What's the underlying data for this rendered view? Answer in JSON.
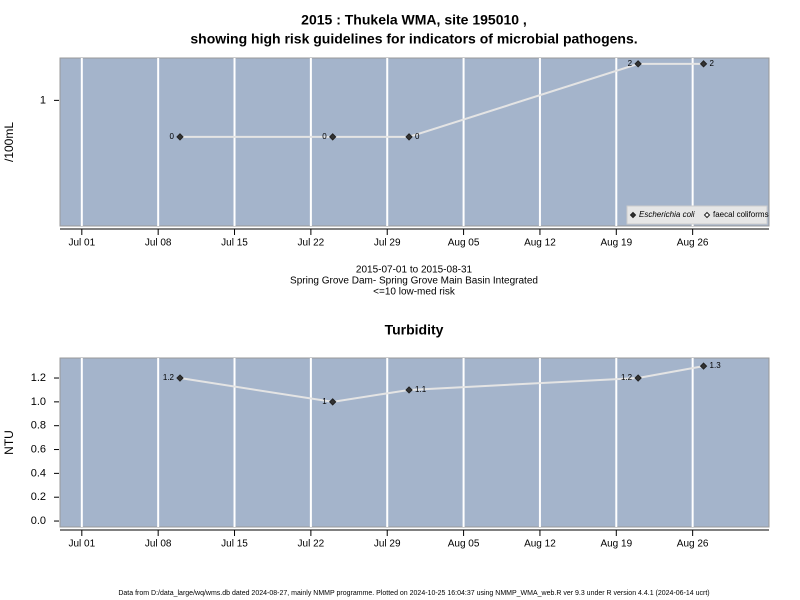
{
  "footer": "Data from D:/data_large/wq/wms.db dated 2024-08-27, mainly NMMP programme. Plotted on 2024-10-25 16:04:37 using NMMP_WMA_web.R ver 9.3 under R version 4.4.1 (2024-06-14 ucrt)",
  "chart_data": [
    {
      "type": "line",
      "title": [
        "2015 : Thukela WMA, site 195010 ,",
        "showing high risk guidelines for indicators of microbial pathogens."
      ],
      "caption": [
        "2015-07-01 to 2015-08-31",
        "Spring Grove Dam- Spring Grove Main Basin Integrated",
        "<=10 low-med risk"
      ],
      "ylabel": "/100mL",
      "x": [
        "2015-07-10",
        "2015-07-24",
        "2015-07-31",
        "2015-08-21",
        "2015-08-27"
      ],
      "series": [
        {
          "name": "Escherichia coli",
          "color": "#333333",
          "values": [
            0,
            0,
            0,
            2,
            2
          ]
        },
        {
          "name": "faecal coliforms",
          "color": "#ffffff",
          "values": [
            null,
            null,
            null,
            null,
            null
          ]
        }
      ],
      "xlim": [
        "2015-06-29",
        "2015-09-02"
      ],
      "xticks": [
        {
          "value": "2015-07-01",
          "label": "Jul 01"
        },
        {
          "value": "2015-07-08",
          "label": "Jul 08"
        },
        {
          "value": "2015-07-15",
          "label": "Jul 15"
        },
        {
          "value": "2015-07-22",
          "label": "Jul 22"
        },
        {
          "value": "2015-07-29",
          "label": "Jul 29"
        },
        {
          "value": "2015-08-05",
          "label": "Aug 05"
        },
        {
          "value": "2015-08-12",
          "label": "Aug 12"
        },
        {
          "value": "2015-08-19",
          "label": "Aug 19"
        },
        {
          "value": "2015-08-26",
          "label": "Aug 26"
        }
      ],
      "ylim": [
        -2.44,
        2.16
      ],
      "yticks": [
        1
      ],
      "grid": "x",
      "background": "#a4b4cb",
      "line_color": "#e4e4e4",
      "legend": "bottom-right"
    },
    {
      "type": "line",
      "title": [
        "Turbidity"
      ],
      "ylabel": "NTU",
      "x": [
        "2015-07-10",
        "2015-07-24",
        "2015-07-31",
        "2015-08-21",
        "2015-08-27"
      ],
      "series": [
        {
          "name": "Turbidity",
          "color": "#333333",
          "values": [
            1.2,
            1.0,
            1.1,
            1.2,
            1.3
          ],
          "value_labels": [
            "1.2",
            "1",
            "1.1",
            "1.2",
            "1.3"
          ]
        }
      ],
      "xlim": [
        "2015-06-29",
        "2015-09-02"
      ],
      "xticks": [
        {
          "value": "2015-07-01",
          "label": "Jul 01"
        },
        {
          "value": "2015-07-08",
          "label": "Jul 08"
        },
        {
          "value": "2015-07-15",
          "label": "Jul 15"
        },
        {
          "value": "2015-07-22",
          "label": "Jul 22"
        },
        {
          "value": "2015-07-29",
          "label": "Jul 29"
        },
        {
          "value": "2015-08-05",
          "label": "Aug 05"
        },
        {
          "value": "2015-08-12",
          "label": "Aug 12"
        },
        {
          "value": "2015-08-19",
          "label": "Aug 19"
        },
        {
          "value": "2015-08-26",
          "label": "Aug 26"
        }
      ],
      "ylim": [
        -0.05,
        1.368
      ],
      "yticks": [
        {
          "value": 0,
          "label": "0.0"
        },
        0.2,
        0.4,
        0.6,
        0.8,
        {
          "value": 1,
          "label": "1.0"
        },
        1.2
      ],
      "grid": "x",
      "background": "#a4b4cb",
      "line_color": "#e4e4e4"
    }
  ]
}
